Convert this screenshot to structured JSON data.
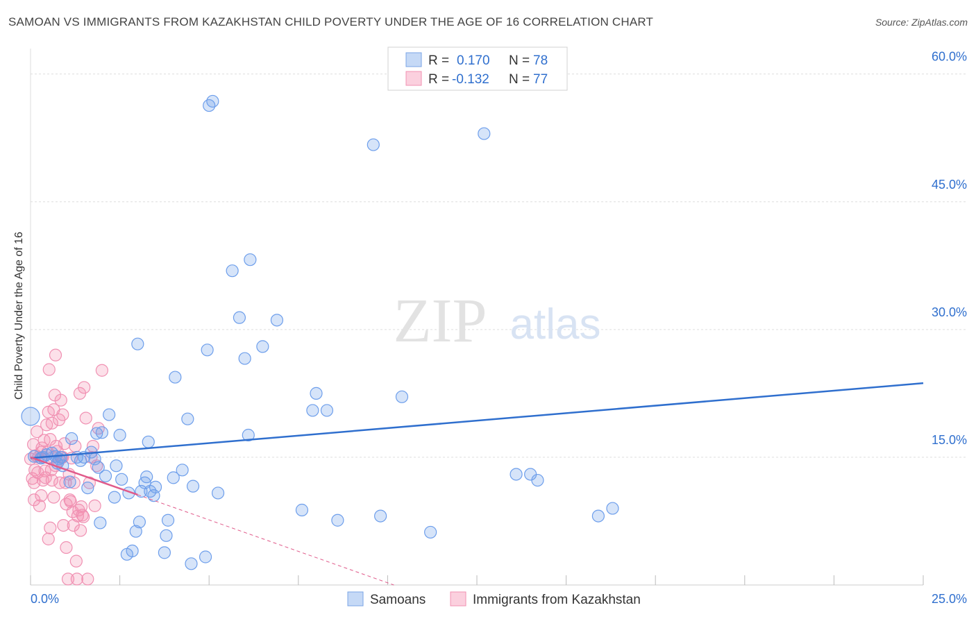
{
  "title": "SAMOAN VS IMMIGRANTS FROM KAZAKHSTAN CHILD POVERTY UNDER THE AGE OF 16 CORRELATION CHART",
  "source": "Source: ZipAtlas.com",
  "watermark": {
    "zip": "ZIP",
    "atlas": "atlas"
  },
  "legend_box": {
    "rows": [
      {
        "r_label": "R =",
        "r_value": "0.170",
        "n_label": "N =",
        "n_value": "78"
      },
      {
        "r_label": "R =",
        "r_value": "-0.132",
        "n_label": "N =",
        "n_value": "77"
      }
    ]
  },
  "chart_data": {
    "type": "scatter",
    "title": "SAMOAN VS IMMIGRANTS FROM KAZAKHSTAN CHILD POVERTY UNDER THE AGE OF 16 CORRELATION CHART",
    "xlabel": "",
    "ylabel": "Child Poverty Under the Age of 16",
    "xlim": [
      0,
      25
    ],
    "ylim": [
      0,
      62.5
    ],
    "x_tick_labels": [
      "0.0%",
      "25.0%"
    ],
    "y_ticks": [
      15,
      30,
      45,
      60
    ],
    "y_tick_labels": [
      "15.0%",
      "30.0%",
      "45.0%",
      "60.0%"
    ],
    "grid": true,
    "legend_position": "bottom-center",
    "colors": {
      "samoans": "#6d9eeb",
      "kazakhstan": "#f48fb1",
      "samoans_line": "#2f6fce",
      "kazakhstan_line": "#e05a8a"
    },
    "series": [
      {
        "name": "Samoans",
        "r": 0.17,
        "n": 78,
        "trend": {
          "x": [
            0,
            25
          ],
          "y": [
            14.9,
            23.7
          ]
        },
        "points": [
          [
            0.0,
            19.8
          ],
          [
            0.1,
            15.1
          ],
          [
            0.3,
            14.9
          ],
          [
            0.35,
            15.0
          ],
          [
            0.45,
            15.3
          ],
          [
            0.6,
            15.5
          ],
          [
            0.7,
            15.1
          ],
          [
            0.75,
            14.3
          ],
          [
            0.8,
            14.8
          ],
          [
            0.85,
            15.0
          ],
          [
            0.9,
            14.0
          ],
          [
            1.1,
            12.1
          ],
          [
            1.15,
            17.2
          ],
          [
            1.3,
            15.0
          ],
          [
            1.4,
            14.6
          ],
          [
            1.5,
            15.0
          ],
          [
            1.6,
            11.4
          ],
          [
            1.7,
            15.6
          ],
          [
            1.8,
            14.8
          ],
          [
            1.85,
            17.8
          ],
          [
            1.9,
            13.8
          ],
          [
            1.95,
            7.3
          ],
          [
            2.0,
            17.9
          ],
          [
            2.1,
            12.8
          ],
          [
            2.2,
            20.0
          ],
          [
            2.35,
            10.3
          ],
          [
            2.4,
            14.0
          ],
          [
            2.5,
            17.6
          ],
          [
            2.55,
            12.4
          ],
          [
            2.7,
            3.6
          ],
          [
            2.75,
            10.8
          ],
          [
            2.85,
            4.0
          ],
          [
            2.95,
            6.3
          ],
          [
            3.0,
            28.3
          ],
          [
            3.05,
            7.4
          ],
          [
            3.1,
            11.0
          ],
          [
            3.2,
            12.0
          ],
          [
            3.25,
            12.7
          ],
          [
            3.3,
            16.8
          ],
          [
            3.35,
            11.0
          ],
          [
            3.45,
            10.5
          ],
          [
            3.5,
            11.5
          ],
          [
            3.75,
            3.8
          ],
          [
            3.8,
            5.8
          ],
          [
            3.85,
            7.6
          ],
          [
            4.0,
            12.6
          ],
          [
            4.05,
            24.4
          ],
          [
            4.25,
            13.5
          ],
          [
            4.4,
            19.5
          ],
          [
            4.5,
            2.5
          ],
          [
            4.55,
            11.6
          ],
          [
            4.9,
            3.3
          ],
          [
            4.95,
            27.6
          ],
          [
            5.0,
            56.3
          ],
          [
            5.1,
            56.8
          ],
          [
            5.25,
            10.8
          ],
          [
            5.65,
            36.9
          ],
          [
            5.85,
            31.4
          ],
          [
            6.0,
            26.6
          ],
          [
            6.1,
            17.6
          ],
          [
            6.15,
            38.2
          ],
          [
            6.5,
            28.0
          ],
          [
            6.9,
            31.1
          ],
          [
            7.6,
            8.8
          ],
          [
            7.9,
            20.5
          ],
          [
            8.0,
            22.5
          ],
          [
            8.3,
            20.5
          ],
          [
            8.6,
            7.6
          ],
          [
            9.6,
            51.7
          ],
          [
            9.8,
            8.1
          ],
          [
            10.4,
            22.1
          ],
          [
            11.2,
            6.2
          ],
          [
            12.7,
            53.0
          ],
          [
            13.6,
            13.0
          ],
          [
            14.0,
            13.0
          ],
          [
            14.2,
            12.3
          ],
          [
            15.9,
            8.1
          ],
          [
            16.3,
            9.0
          ]
        ]
      },
      {
        "name": "Immigrants from Kazakhstan",
        "r": -0.132,
        "n": 77,
        "trend": {
          "x": [
            0,
            3.0
          ],
          "y": [
            15.0,
            10.6
          ]
        },
        "trend_dashed": {
          "x": [
            3.0,
            25
          ],
          "y": [
            10.6,
            -21.9
          ]
        },
        "points": [
          [
            0.0,
            14.8
          ],
          [
            0.05,
            12.5
          ],
          [
            0.08,
            16.5
          ],
          [
            0.1,
            12.0
          ],
          [
            0.1,
            10.0
          ],
          [
            0.12,
            13.5
          ],
          [
            0.15,
            15.2
          ],
          [
            0.18,
            18.0
          ],
          [
            0.2,
            13.2
          ],
          [
            0.22,
            15.0
          ],
          [
            0.25,
            9.3
          ],
          [
            0.28,
            14.9
          ],
          [
            0.3,
            10.5
          ],
          [
            0.32,
            16.1
          ],
          [
            0.35,
            12.3
          ],
          [
            0.38,
            17.0
          ],
          [
            0.4,
            13.4
          ],
          [
            0.42,
            12.6
          ],
          [
            0.45,
            18.8
          ],
          [
            0.48,
            15.6
          ],
          [
            0.5,
            20.3
          ],
          [
            0.5,
            5.4
          ],
          [
            0.52,
            25.3
          ],
          [
            0.55,
            6.7
          ],
          [
            0.55,
            17.1
          ],
          [
            0.58,
            13.5
          ],
          [
            0.6,
            19.0
          ],
          [
            0.62,
            15.0
          ],
          [
            0.65,
            20.6
          ],
          [
            0.65,
            10.3
          ],
          [
            0.68,
            22.3
          ],
          [
            0.7,
            27.0
          ],
          [
            0.7,
            14.0
          ],
          [
            0.72,
            16.3
          ],
          [
            0.75,
            15.7
          ],
          [
            0.78,
            14.5
          ],
          [
            0.8,
            19.4
          ],
          [
            0.82,
            12.0
          ],
          [
            0.85,
            21.7
          ],
          [
            0.88,
            15.0
          ],
          [
            0.9,
            20.0
          ],
          [
            0.92,
            7.0
          ],
          [
            0.95,
            16.6
          ],
          [
            0.98,
            12.0
          ],
          [
            1.0,
            9.5
          ],
          [
            1.0,
            4.4
          ],
          [
            1.05,
            0.7
          ],
          [
            1.08,
            13.0
          ],
          [
            1.1,
            10.0
          ],
          [
            1.12,
            9.8
          ],
          [
            1.15,
            14.9
          ],
          [
            1.18,
            8.6
          ],
          [
            1.2,
            7.0
          ],
          [
            1.22,
            12.0
          ],
          [
            1.25,
            16.3
          ],
          [
            1.28,
            2.8
          ],
          [
            1.3,
            0.7
          ],
          [
            1.32,
            8.1
          ],
          [
            1.35,
            8.8
          ],
          [
            1.38,
            22.5
          ],
          [
            1.4,
            6.4
          ],
          [
            1.42,
            9.2
          ],
          [
            1.45,
            8.2
          ],
          [
            1.48,
            8.0
          ],
          [
            1.5,
            23.2
          ],
          [
            1.55,
            19.6
          ],
          [
            1.6,
            0.7
          ],
          [
            1.65,
            12.0
          ],
          [
            1.7,
            15.0
          ],
          [
            1.75,
            16.3
          ],
          [
            1.8,
            9.3
          ],
          [
            1.85,
            14.0
          ],
          [
            1.9,
            18.4
          ],
          [
            2.0,
            25.2
          ],
          [
            0.3,
            15.6
          ],
          [
            0.6,
            12.3
          ],
          [
            0.9,
            15.0
          ]
        ]
      }
    ],
    "legend": [
      "Samoans",
      "Immigrants from Kazakhstan"
    ]
  }
}
